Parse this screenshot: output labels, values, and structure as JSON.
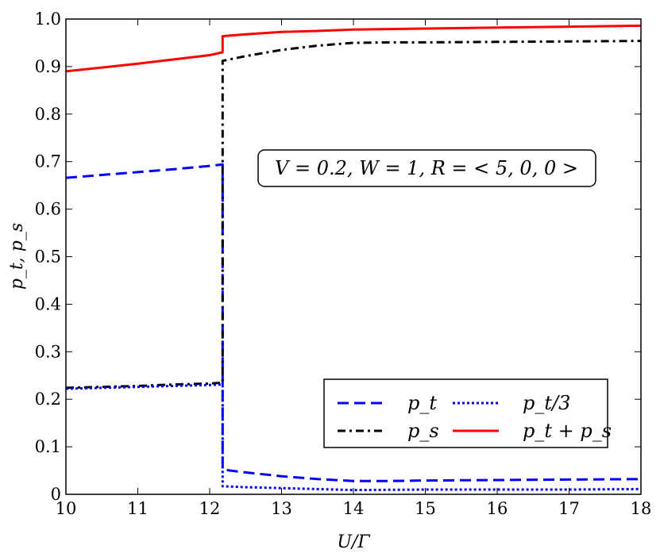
{
  "chart_data": {
    "type": "line",
    "xlabel": "U/Γ",
    "ylabel": "p_t, p_s",
    "xlim": [
      10,
      18
    ],
    "ylim": [
      0,
      1.0
    ],
    "xticks": [
      "10",
      "11",
      "12",
      "13",
      "14",
      "15",
      "16",
      "17",
      "18"
    ],
    "yticks": [
      "0",
      "0.1",
      "0.2",
      "0.3",
      "0.4",
      "0.5",
      "0.6",
      "0.7",
      "0.8",
      "0.9",
      "1.0"
    ],
    "grid": false,
    "annotation": "V = 0.2, W = 1, R = < 5, 0, 0 >",
    "legend_position": "lower-right",
    "series": [
      {
        "name": "p_t",
        "color": "#0000ff",
        "style": "dashed",
        "x": [
          10,
          10.5,
          11,
          11.5,
          12,
          12.18,
          12.18,
          12.5,
          13,
          13.5,
          14,
          14.5,
          15,
          16,
          17,
          18
        ],
        "y": [
          0.666,
          0.672,
          0.678,
          0.684,
          0.691,
          0.694,
          0.052,
          0.046,
          0.038,
          0.032,
          0.028,
          0.028,
          0.029,
          0.03,
          0.031,
          0.032
        ]
      },
      {
        "name": "p_s",
        "color": "#000000",
        "style": "dashdot",
        "x": [
          10,
          10.5,
          11,
          11.5,
          12,
          12.18,
          12.18,
          12.5,
          13,
          13.5,
          14,
          14.5,
          15,
          16,
          17,
          18
        ],
        "y": [
          0.224,
          0.226,
          0.228,
          0.231,
          0.233,
          0.235,
          0.912,
          0.922,
          0.935,
          0.944,
          0.95,
          0.951,
          0.951,
          0.952,
          0.953,
          0.954
        ]
      },
      {
        "name": "p_t/3",
        "color": "#0000ff",
        "style": "dotted",
        "x": [
          10,
          10.5,
          11,
          11.5,
          12,
          12.18,
          12.18,
          12.5,
          13,
          14,
          15,
          16,
          17,
          18
        ],
        "y": [
          0.222,
          0.224,
          0.226,
          0.228,
          0.23,
          0.231,
          0.017,
          0.015,
          0.013,
          0.009,
          0.01,
          0.01,
          0.01,
          0.011
        ]
      },
      {
        "name": "p_t + p_s",
        "color": "#ff0000",
        "style": "solid",
        "x": [
          10,
          10.5,
          11,
          11.5,
          12,
          12.18,
          12.18,
          12.5,
          13,
          13.5,
          14,
          15,
          16,
          17,
          18
        ],
        "y": [
          0.89,
          0.898,
          0.906,
          0.915,
          0.924,
          0.93,
          0.964,
          0.968,
          0.973,
          0.975,
          0.978,
          0.98,
          0.982,
          0.984,
          0.986
        ]
      }
    ]
  }
}
